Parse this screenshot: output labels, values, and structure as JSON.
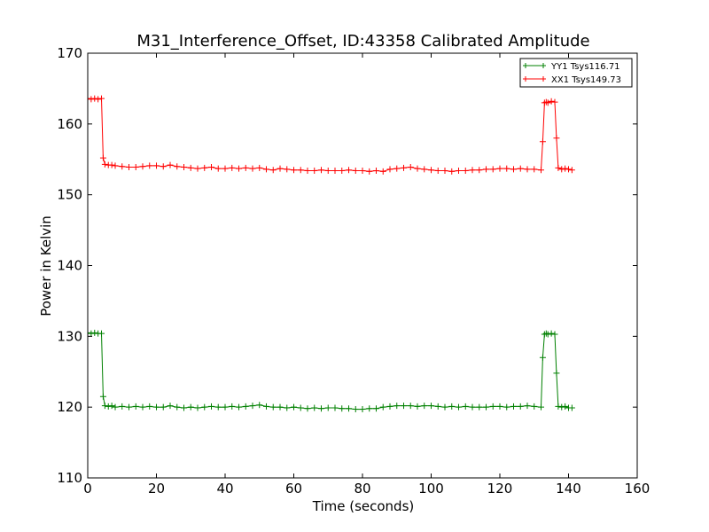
{
  "chart_data": {
    "type": "line",
    "title": "M31_Interference_Offset, ID:43358 Calibrated Amplitude",
    "xlabel": "Time (seconds)",
    "ylabel": "Power in Kelvin",
    "xlim": [
      0,
      160
    ],
    "ylim": [
      110,
      170
    ],
    "xticks": [
      0,
      20,
      40,
      60,
      80,
      100,
      120,
      140,
      160
    ],
    "yticks": [
      110,
      120,
      130,
      140,
      150,
      160,
      170
    ],
    "grid": false,
    "legend_position": "top-right",
    "series": [
      {
        "name": "YY1 Tsys116.71",
        "color": "#008000",
        "marker": "+",
        "x": [
          0,
          1,
          2,
          3,
          4,
          4.5,
          5,
          6,
          7,
          8,
          10,
          12,
          14,
          16,
          18,
          20,
          22,
          24,
          26,
          28,
          30,
          32,
          34,
          36,
          38,
          40,
          42,
          44,
          46,
          48,
          50,
          52,
          54,
          56,
          58,
          60,
          62,
          64,
          66,
          68,
          70,
          72,
          74,
          76,
          78,
          80,
          82,
          84,
          86,
          88,
          90,
          92,
          94,
          96,
          98,
          100,
          102,
          104,
          106,
          108,
          110,
          112,
          114,
          116,
          118,
          120,
          122,
          124,
          126,
          128,
          130,
          132,
          132.5,
          133,
          133.5,
          134,
          135,
          136,
          136.5,
          137,
          138,
          139,
          140,
          141
        ],
        "y": [
          130.5,
          130.4,
          130.5,
          130.4,
          130.4,
          121.5,
          120.2,
          120.1,
          120.2,
          120.0,
          120.1,
          120.0,
          120.1,
          120.0,
          120.1,
          120.0,
          120.0,
          120.2,
          120.0,
          119.9,
          120.0,
          119.9,
          120.0,
          120.1,
          120.0,
          120.0,
          120.1,
          120.0,
          120.1,
          120.2,
          120.3,
          120.1,
          120.0,
          120.0,
          119.9,
          120.0,
          119.9,
          119.8,
          119.9,
          119.8,
          119.9,
          119.9,
          119.8,
          119.8,
          119.7,
          119.7,
          119.8,
          119.8,
          120.0,
          120.1,
          120.2,
          120.2,
          120.2,
          120.1,
          120.2,
          120.2,
          120.1,
          120.0,
          120.1,
          120.0,
          120.1,
          120.0,
          120.0,
          120.0,
          120.1,
          120.1,
          120.0,
          120.1,
          120.1,
          120.2,
          120.1,
          120.0,
          127.0,
          130.3,
          130.4,
          130.3,
          130.4,
          130.3,
          124.8,
          120.1,
          120.0,
          120.1,
          119.9,
          119.9
        ]
      },
      {
        "name": "XX1 Tsys149.73",
        "color": "#ff0000",
        "marker": "+",
        "x": [
          0,
          1,
          2,
          3,
          4,
          4.5,
          5,
          6,
          7,
          8,
          10,
          12,
          14,
          16,
          18,
          20,
          22,
          24,
          26,
          28,
          30,
          32,
          34,
          36,
          38,
          40,
          42,
          44,
          46,
          48,
          50,
          52,
          54,
          56,
          58,
          60,
          62,
          64,
          66,
          68,
          70,
          72,
          74,
          76,
          78,
          80,
          82,
          84,
          86,
          88,
          90,
          92,
          94,
          96,
          98,
          100,
          102,
          104,
          106,
          108,
          110,
          112,
          114,
          116,
          118,
          120,
          122,
          124,
          126,
          128,
          130,
          132,
          132.5,
          133,
          133.5,
          134,
          135,
          136,
          136.5,
          137,
          138,
          139,
          140,
          141
        ],
        "y": [
          163.6,
          163.5,
          163.6,
          163.5,
          163.6,
          155.2,
          154.3,
          154.2,
          154.2,
          154.1,
          154.0,
          153.9,
          153.9,
          154.0,
          154.1,
          154.1,
          154.0,
          154.2,
          154.0,
          153.9,
          153.8,
          153.7,
          153.8,
          153.9,
          153.7,
          153.7,
          153.8,
          153.7,
          153.8,
          153.7,
          153.8,
          153.6,
          153.5,
          153.7,
          153.6,
          153.5,
          153.5,
          153.4,
          153.4,
          153.5,
          153.4,
          153.4,
          153.4,
          153.5,
          153.4,
          153.4,
          153.3,
          153.4,
          153.3,
          153.6,
          153.7,
          153.8,
          153.9,
          153.7,
          153.6,
          153.5,
          153.4,
          153.4,
          153.3,
          153.4,
          153.4,
          153.5,
          153.5,
          153.6,
          153.6,
          153.7,
          153.7,
          153.6,
          153.7,
          153.6,
          153.6,
          153.5,
          157.5,
          163.0,
          163.1,
          163.0,
          163.2,
          163.1,
          158.0,
          153.8,
          153.6,
          153.7,
          153.6,
          153.5
        ]
      }
    ]
  }
}
